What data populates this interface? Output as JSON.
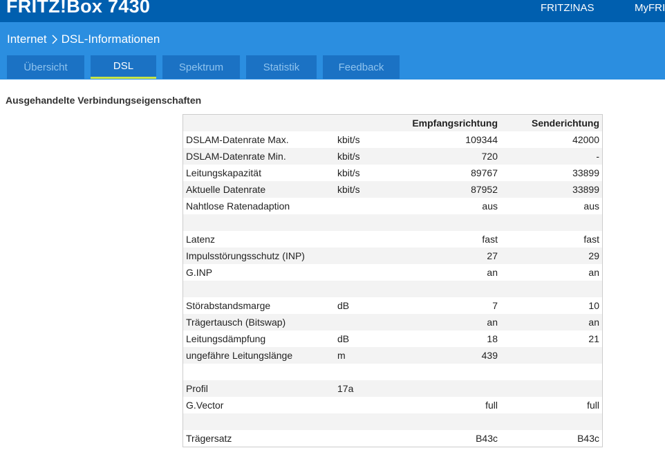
{
  "header": {
    "title": "FRITZ!Box 7430",
    "nav": [
      "FRITZ!NAS",
      "MyFRI"
    ]
  },
  "breadcrumb": [
    "Internet",
    "DSL-Informationen"
  ],
  "tabs": [
    {
      "label": "Übersicht",
      "active": false
    },
    {
      "label": "DSL",
      "active": true
    },
    {
      "label": "Spektrum",
      "active": false
    },
    {
      "label": "Statistik",
      "active": false
    },
    {
      "label": "Feedback",
      "active": false
    }
  ],
  "section": {
    "heading": "Ausgehandelte Verbindungseigenschaften"
  },
  "table": {
    "columns": [
      "Empfangsrichtung",
      "Senderichtung"
    ],
    "rows": [
      {
        "label": "DSLAM-Datenrate Max.",
        "unit": "kbit/s",
        "down": "109344",
        "up": "42000"
      },
      {
        "label": "DSLAM-Datenrate Min.",
        "unit": "kbit/s",
        "down": "720",
        "up": "-"
      },
      {
        "label": "Leitungskapazität",
        "unit": "kbit/s",
        "down": "89767",
        "up": "33899"
      },
      {
        "label": "Aktuelle Datenrate",
        "unit": "kbit/s",
        "down": "87952",
        "up": "33899"
      },
      {
        "label": "Nahtlose Ratenadaption",
        "down": "aus",
        "up": "aus"
      },
      {},
      {
        "label": "Latenz",
        "down": "fast",
        "up": "fast"
      },
      {
        "label": "Impulsstörungsschutz (INP)",
        "down": "27",
        "up": "29"
      },
      {
        "label": "G.INP",
        "down": "an",
        "up": "an"
      },
      {},
      {
        "label": "Störabstandsmarge",
        "unit": "dB",
        "down": "7",
        "up": "10"
      },
      {
        "label": "Trägertausch (Bitswap)",
        "down": "an",
        "up": "an"
      },
      {
        "label": "Leitungsdämpfung",
        "unit": "dB",
        "down": "18",
        "up": "21"
      },
      {
        "label": "ungefähre Leitungslänge",
        "unit": "m",
        "down": "439"
      },
      {},
      {
        "label": "Profil",
        "unit": "17a"
      },
      {
        "label": "G.Vector",
        "down": "full",
        "up": "full"
      },
      {},
      {
        "label": "Trägersatz",
        "down": "B43c",
        "up": "B43c"
      }
    ]
  }
}
